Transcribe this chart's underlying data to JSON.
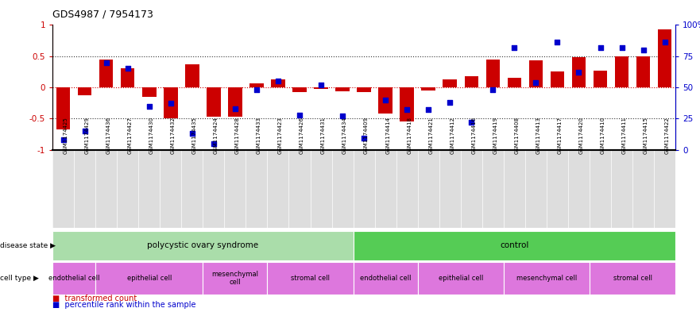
{
  "title": "GDS4987 / 7954173",
  "samples": [
    "GSM1174425",
    "GSM1174429",
    "GSM1174436",
    "GSM1174427",
    "GSM1174430",
    "GSM1174432",
    "GSM1174435",
    "GSM1174424",
    "GSM1174428",
    "GSM1174433",
    "GSM1174423",
    "GSM1174426",
    "GSM1174431",
    "GSM1174434",
    "GSM1174409",
    "GSM1174414",
    "GSM1174418",
    "GSM1174421",
    "GSM1174412",
    "GSM1174416",
    "GSM1174419",
    "GSM1174408",
    "GSM1174413",
    "GSM1174417",
    "GSM1174420",
    "GSM1174410",
    "GSM1174411",
    "GSM1174415",
    "GSM1174422"
  ],
  "bar_values": [
    -0.68,
    -0.13,
    0.44,
    0.3,
    -0.15,
    -0.5,
    0.37,
    -0.47,
    -0.47,
    0.07,
    0.13,
    -0.07,
    -0.03,
    -0.06,
    -0.08,
    -0.42,
    -0.55,
    -0.05,
    0.13,
    0.18,
    0.44,
    0.15,
    0.43,
    0.25,
    0.48,
    0.27,
    0.5,
    0.5,
    0.93
  ],
  "dot_values": [
    8,
    15,
    70,
    65,
    35,
    37,
    13,
    5,
    33,
    48,
    55,
    28,
    52,
    27,
    9,
    40,
    32,
    32,
    38,
    22,
    48,
    82,
    54,
    86,
    62,
    82,
    82,
    80,
    86
  ],
  "bar_color": "#cc0000",
  "dot_color": "#0000cc",
  "disease_state_groups": [
    {
      "label": "polycystic ovary syndrome",
      "start": 0,
      "end": 14,
      "color": "#aaddaa"
    },
    {
      "label": "control",
      "start": 14,
      "end": 29,
      "color": "#55cc55"
    }
  ],
  "cell_type_groups": [
    {
      "label": "endothelial cell",
      "start": 0,
      "end": 2,
      "color": "#dd77dd"
    },
    {
      "label": "epithelial cell",
      "start": 2,
      "end": 7,
      "color": "#dd77dd"
    },
    {
      "label": "mesenchymal\ncell",
      "start": 7,
      "end": 10,
      "color": "#dd77dd"
    },
    {
      "label": "stromal cell",
      "start": 10,
      "end": 14,
      "color": "#dd77dd"
    },
    {
      "label": "endothelial cell",
      "start": 14,
      "end": 17,
      "color": "#dd77dd"
    },
    {
      "label": "epithelial cell",
      "start": 17,
      "end": 21,
      "color": "#dd77dd"
    },
    {
      "label": "mesenchymal cell",
      "start": 21,
      "end": 25,
      "color": "#dd77dd"
    },
    {
      "label": "stromal cell",
      "start": 25,
      "end": 29,
      "color": "#dd77dd"
    }
  ],
  "ylim": [
    -1.0,
    1.0
  ],
  "yticks_left": [
    -1.0,
    -0.5,
    0.0,
    0.5,
    1.0
  ],
  "yticks_right": [
    0,
    25,
    50,
    75,
    100
  ],
  "xtick_bg": "#dddddd"
}
